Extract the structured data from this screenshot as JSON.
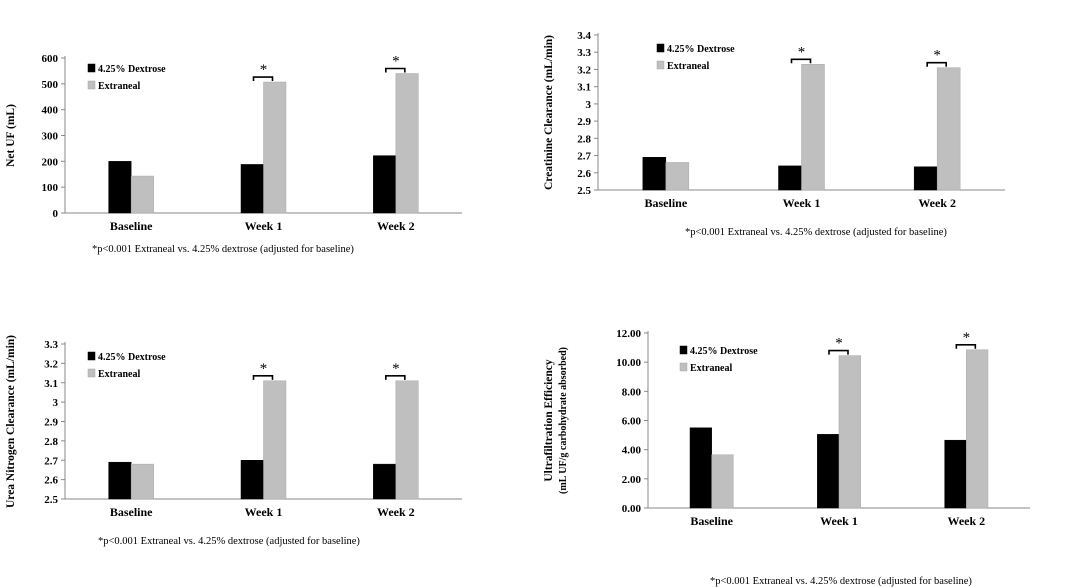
{
  "chart_data": [
    {
      "type": "bar",
      "categories": [
        "Baseline",
        "Week 1",
        "Week 2"
      ],
      "series": [
        {
          "name": "4.25% Dextrose",
          "values": [
            200,
            188,
            222
          ],
          "color": "#000000"
        },
        {
          "name": "Extraneal",
          "values": [
            143,
            507,
            540
          ],
          "color": "#bfbfbf"
        }
      ],
      "ylabel": "Net UF (mL)",
      "ylim": [
        0,
        600
      ],
      "yticks": [
        0,
        100,
        200,
        300,
        400,
        500,
        600
      ],
      "tick_decimals": 0,
      "significance": [
        null,
        "*",
        "*"
      ],
      "legend_placement": "top-left",
      "grid": false,
      "footnote": "*p<0.001 Extraneal vs. 4.25% dextrose (adjusted for baseline)"
    },
    {
      "type": "bar",
      "categories": [
        "Baseline",
        "Week 1",
        "Week 2"
      ],
      "series": [
        {
          "name": "4.25% Dextrose",
          "values": [
            2.69,
            2.64,
            2.635
          ],
          "color": "#000000"
        },
        {
          "name": "Extraneal",
          "values": [
            2.66,
            3.23,
            3.21
          ],
          "color": "#bfbfbf"
        }
      ],
      "ylabel": "Creatinine Clearance (mL/min)",
      "ylim": [
        2.5,
        3.4
      ],
      "yticks": [
        2.5,
        2.6,
        2.7,
        2.8,
        2.9,
        3,
        3.1,
        3.2,
        3.3,
        3.4
      ],
      "tick_decimals": -1,
      "significance": [
        null,
        "*",
        "*"
      ],
      "legend_placement": "top-left",
      "grid": false,
      "footnote": "*p<0.001 Extraneal vs. 4.25% dextrose (adjusted for baseline)"
    },
    {
      "type": "bar",
      "categories": [
        "Baseline",
        "Week 1",
        "Week 2"
      ],
      "series": [
        {
          "name": "4.25% Dextrose",
          "values": [
            2.69,
            2.7,
            2.68
          ],
          "color": "#000000"
        },
        {
          "name": "Extraneal",
          "values": [
            2.68,
            3.11,
            3.11
          ],
          "color": "#bfbfbf"
        }
      ],
      "ylabel": "Urea Nitrogen Clearance (mL/min)",
      "ylim": [
        2.5,
        3.3
      ],
      "yticks": [
        2.5,
        2.6,
        2.7,
        2.8,
        2.9,
        3,
        3.1,
        3.2,
        3.3
      ],
      "tick_decimals": -1,
      "significance": [
        null,
        "*",
        "*"
      ],
      "legend_placement": "top-left",
      "grid": false,
      "footnote": "*p<0.001 Extraneal vs. 4.25% dextrose (adjusted for baseline)"
    },
    {
      "type": "bar",
      "categories": [
        "Baseline",
        "Week 1",
        "Week 2"
      ],
      "series": [
        {
          "name": "4.25% Dextrose",
          "values": [
            5.5,
            5.05,
            4.65
          ],
          "color": "#000000"
        },
        {
          "name": "Extraneal",
          "values": [
            3.65,
            10.45,
            10.85
          ],
          "color": "#bfbfbf"
        }
      ],
      "ylabel": "Ultrafiltration Efficiency",
      "ylabel2": "(mL UF/g carbohydrate absorbed)",
      "ylim": [
        0,
        12
      ],
      "yticks": [
        0,
        2,
        4,
        6,
        8,
        10,
        12
      ],
      "tick_decimals": 2,
      "significance": [
        null,
        "*",
        "*"
      ],
      "legend_placement": "top-left",
      "grid": false,
      "footnote": "*p<0.001 Extraneal vs. 4.25% dextrose (adjusted for baseline)"
    }
  ]
}
